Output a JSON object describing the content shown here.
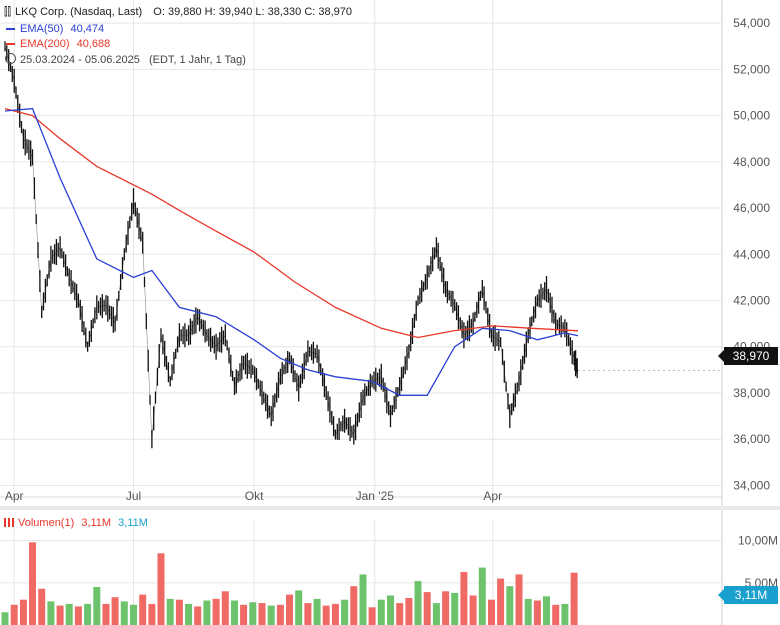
{
  "header": {
    "symbol": "LKQ Corp. (Nasdaq, Last)",
    "ohlc": "O: 39,880  H: 39,940  L: 38,330  C: 38,970",
    "ema50_label": "EMA(50)",
    "ema50_value": "40,474",
    "ema200_label": "EMA(200)",
    "ema200_value": "40,688",
    "range": "25.03.2024 - 05.06.2025",
    "range_note": "(EDT, 1 Jahr, 1 Tag)"
  },
  "volume_header": {
    "label": "Volumen(1)",
    "value_red": "3,11M",
    "value_blue": "3,11M"
  },
  "price_tag": "38,970",
  "volume_tag": "3,11M",
  "colors": {
    "ema50": "#2a3fd6",
    "ema200": "#e8372a",
    "price": "#111111",
    "vol_up": "#6cc36c",
    "vol_down": "#ef6a64",
    "grid": "#e6e6e6"
  },
  "chart_data": {
    "type": "line",
    "price_axis": {
      "ylim": [
        33500,
        55000
      ],
      "ticks": [
        "54,000",
        "52,000",
        "50,000",
        "48,000",
        "46,000",
        "44,000",
        "42,000",
        "40,000",
        "38,000",
        "36,000",
        "34,000"
      ],
      "tick_values": [
        54000,
        52000,
        50000,
        48000,
        46000,
        44000,
        42000,
        40000,
        38000,
        36000,
        34000
      ]
    },
    "x_ticks": [
      {
        "label": "Apr",
        "date": "2024-04-01"
      },
      {
        "label": "Jul",
        "date": "2024-07-01"
      },
      {
        "label": "Okt",
        "date": "2024-10-01"
      },
      {
        "label": "Jan '25",
        "date": "2025-01-01"
      },
      {
        "label": "Apr",
        "date": "2025-04-01"
      }
    ],
    "x_range": [
      "2024-03-25",
      "2025-06-05"
    ],
    "price_series": {
      "name": "LKQ Corp.",
      "dates": [
        "2024-03-25",
        "2024-04-01",
        "2024-04-08",
        "2024-04-15",
        "2024-04-22",
        "2024-04-29",
        "2024-05-06",
        "2024-05-13",
        "2024-05-20",
        "2024-05-27",
        "2024-06-03",
        "2024-06-10",
        "2024-06-17",
        "2024-06-24",
        "2024-07-01",
        "2024-07-08",
        "2024-07-15",
        "2024-07-22",
        "2024-07-29",
        "2024-08-05",
        "2024-08-12",
        "2024-08-19",
        "2024-08-26",
        "2024-09-02",
        "2024-09-09",
        "2024-09-16",
        "2024-09-23",
        "2024-09-30",
        "2024-10-07",
        "2024-10-14",
        "2024-10-21",
        "2024-10-28",
        "2024-11-04",
        "2024-11-11",
        "2024-11-18",
        "2024-11-25",
        "2024-12-02",
        "2024-12-09",
        "2024-12-16",
        "2024-12-23",
        "2024-12-30",
        "2025-01-06",
        "2025-01-13",
        "2025-01-20",
        "2025-01-27",
        "2025-02-03",
        "2025-02-10",
        "2025-02-17",
        "2025-02-24",
        "2025-03-03",
        "2025-03-10",
        "2025-03-17",
        "2025-03-24",
        "2025-03-31",
        "2025-04-07",
        "2025-04-14",
        "2025-04-21",
        "2025-04-28",
        "2025-05-05",
        "2025-05-12",
        "2025-05-19",
        "2025-05-26",
        "2025-06-02",
        "2025-06-05"
      ],
      "values": [
        53000,
        51500,
        49000,
        48200,
        41500,
        43800,
        44300,
        43000,
        42000,
        40000,
        41700,
        41800,
        41000,
        44000,
        46300,
        44500,
        36000,
        40500,
        38500,
        40500,
        40500,
        41300,
        40500,
        40000,
        40500,
        38300,
        39300,
        39000,
        38000,
        37000,
        38700,
        39500,
        38200,
        39800,
        39700,
        38000,
        36200,
        36800,
        36200,
        37800,
        38500,
        38700,
        37000,
        38300,
        39800,
        42000,
        43000,
        44300,
        42500,
        41800,
        40500,
        41000,
        42500,
        40500,
        40200,
        37000,
        38500,
        40500,
        42000,
        42500,
        41000,
        40800,
        39500,
        38970
      ]
    },
    "ema50_series": {
      "name": "EMA(50)",
      "dates": [
        "2024-03-25",
        "2024-04-15",
        "2024-05-06",
        "2024-06-03",
        "2024-07-01",
        "2024-07-15",
        "2024-08-05",
        "2024-09-02",
        "2024-10-01",
        "2024-10-21",
        "2024-11-11",
        "2024-12-02",
        "2024-12-30",
        "2025-01-20",
        "2025-02-10",
        "2025-03-03",
        "2025-03-24",
        "2025-04-14",
        "2025-05-05",
        "2025-05-26",
        "2025-06-05"
      ],
      "values": [
        50200,
        50300,
        47300,
        43800,
        43000,
        43300,
        41700,
        41300,
        40300,
        39500,
        39000,
        38700,
        38500,
        37900,
        37900,
        40000,
        40800,
        40700,
        40300,
        40600,
        40474
      ]
    },
    "ema200_series": {
      "name": "EMA(200)",
      "dates": [
        "2024-03-25",
        "2024-04-15",
        "2024-05-06",
        "2024-06-03",
        "2024-07-15",
        "2024-08-05",
        "2024-09-02",
        "2024-10-01",
        "2024-11-01",
        "2024-12-02",
        "2025-01-06",
        "2025-02-03",
        "2025-03-03",
        "2025-04-01",
        "2025-05-01",
        "2025-06-05"
      ],
      "values": [
        50300,
        50000,
        49000,
        47800,
        46600,
        45900,
        45000,
        44100,
        42800,
        41700,
        40800,
        40400,
        40700,
        40900,
        40800,
        40688
      ]
    },
    "volume": {
      "name": "Volumen(1)",
      "ylim": [
        0,
        11500000
      ],
      "ticks": [
        "10,00M",
        "5,00M"
      ],
      "tick_values": [
        10000000,
        5000000
      ],
      "dates": [
        "2024-03-25",
        "2024-04-01",
        "2024-04-08",
        "2024-04-15",
        "2024-04-22",
        "2024-04-29",
        "2024-05-06",
        "2024-05-13",
        "2024-05-20",
        "2024-05-27",
        "2024-06-03",
        "2024-06-10",
        "2024-06-17",
        "2024-06-24",
        "2024-07-01",
        "2024-07-08",
        "2024-07-15",
        "2024-07-22",
        "2024-07-29",
        "2024-08-05",
        "2024-08-12",
        "2024-08-19",
        "2024-08-26",
        "2024-09-02",
        "2024-09-09",
        "2024-09-16",
        "2024-09-23",
        "2024-09-30",
        "2024-10-07",
        "2024-10-14",
        "2024-10-21",
        "2024-10-28",
        "2024-11-04",
        "2024-11-11",
        "2024-11-18",
        "2024-11-25",
        "2024-12-02",
        "2024-12-09",
        "2024-12-16",
        "2024-12-23",
        "2024-12-30",
        "2025-01-06",
        "2025-01-13",
        "2025-01-20",
        "2025-01-27",
        "2025-02-03",
        "2025-02-10",
        "2025-02-17",
        "2025-02-24",
        "2025-03-03",
        "2025-03-10",
        "2025-03-17",
        "2025-03-24",
        "2025-03-31",
        "2025-04-07",
        "2025-04-14",
        "2025-04-21",
        "2025-04-28",
        "2025-05-05",
        "2025-05-12",
        "2025-05-19",
        "2025-05-26",
        "2025-06-02"
      ],
      "values": [
        1500000,
        2400000,
        3000000,
        9800000,
        4300000,
        2800000,
        2300000,
        2500000,
        2200000,
        2500000,
        4500000,
        2500000,
        3300000,
        2800000,
        2400000,
        3600000,
        2500000,
        8500000,
        3100000,
        3000000,
        2500000,
        2200000,
        2900000,
        3100000,
        4000000,
        2900000,
        2400000,
        2700000,
        2600000,
        2300000,
        2400000,
        3600000,
        4100000,
        2600000,
        3100000,
        2300000,
        2500000,
        3000000,
        4600000,
        6000000,
        2100000,
        3000000,
        3500000,
        2600000,
        3200000,
        5200000,
        3900000,
        2600000,
        4000000,
        3800000,
        6300000,
        3500000,
        6800000,
        3000000,
        5500000,
        4600000,
        6000000,
        3100000,
        2900000,
        3400000,
        2400000,
        2500000,
        6200000
      ],
      "up": [
        true,
        false,
        false,
        false,
        false,
        true,
        false,
        true,
        false,
        true,
        true,
        false,
        false,
        true,
        true,
        false,
        false,
        false,
        true,
        false,
        true,
        false,
        true,
        false,
        false,
        true,
        false,
        true,
        false,
        true,
        false,
        false,
        true,
        false,
        true,
        false,
        false,
        true,
        false,
        true,
        false,
        true,
        true,
        false,
        false,
        true,
        false,
        true,
        false,
        true,
        false,
        false,
        true,
        false,
        false,
        true,
        false,
        true,
        false,
        true,
        false,
        true,
        false
      ]
    }
  }
}
